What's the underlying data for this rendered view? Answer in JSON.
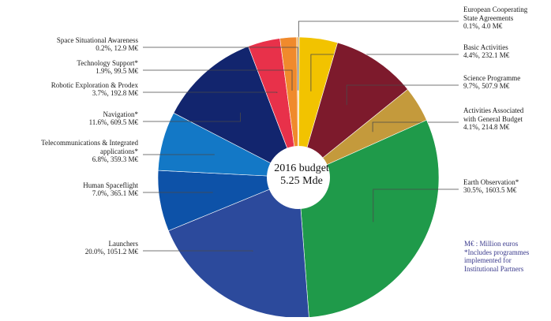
{
  "chart_data": {
    "type": "pie",
    "center_label": [
      "2016 budget",
      "5.25 Mde"
    ],
    "slices": [
      {
        "name": "European Cooperating State Agreements",
        "label_lines": [
          "European Cooperating",
          "State Agreements",
          "0.1%, 4.0 M€"
        ],
        "percent": 0.1,
        "value": 4.0,
        "color": "#d9d2b6"
      },
      {
        "name": "Basic Activities",
        "label_lines": [
          "Basic Activities",
          "4.4%, 232.1 M€"
        ],
        "percent": 4.4,
        "value": 232.1,
        "color": "#f2c300"
      },
      {
        "name": "Science Programme",
        "label_lines": [
          "Science Programme",
          "9.7%, 507.9 M€"
        ],
        "percent": 9.7,
        "value": 507.9,
        "color": "#7d1a2c"
      },
      {
        "name": "Activities Associated with General Budget",
        "label_lines": [
          "Activities Associated",
          "with General Budget",
          "4.1%, 214.8 M€"
        ],
        "percent": 4.1,
        "value": 214.8,
        "color": "#c49a3c"
      },
      {
        "name": "Earth Observation*",
        "label_lines": [
          "Earth Observation*",
          "30.5%, 1603.5 M€"
        ],
        "percent": 30.5,
        "value": 1603.5,
        "color": "#1f9a4a"
      },
      {
        "name": "Launchers",
        "label_lines": [
          "Launchers",
          "20.0%, 1051.2 M€"
        ],
        "percent": 20.0,
        "value": 1051.2,
        "color": "#2c4a9c"
      },
      {
        "name": "Human Spaceflight",
        "label_lines": [
          "Human Spaceflight",
          "7.0%, 365.1 M€"
        ],
        "percent": 7.0,
        "value": 365.1,
        "color": "#0d52a8"
      },
      {
        "name": "Telecommunications & Integrated applications*",
        "label_lines": [
          "Telecommunications & Integrated",
          "applications*",
          "6.8%, 359.3 M€"
        ],
        "percent": 6.8,
        "value": 359.3,
        "color": "#1378c6"
      },
      {
        "name": "Navigation*",
        "label_lines": [
          "Navigation*",
          "11.6%, 609.5 M€"
        ],
        "percent": 11.6,
        "value": 609.5,
        "color": "#12256e"
      },
      {
        "name": "Robotic Exploration & Prodex",
        "label_lines": [
          "Robotic Exploration & Prodex",
          "3.7%, 192.8 M€"
        ],
        "percent": 3.7,
        "value": 192.8,
        "color": "#e8314a"
      },
      {
        "name": "Technology Support*",
        "label_lines": [
          "Technology Support*",
          "1.9%, 99.5 M€"
        ],
        "percent": 1.9,
        "value": 99.5,
        "color": "#f08a2c"
      },
      {
        "name": "Space Situational Awareness",
        "label_lines": [
          "Space Situational Awareness",
          "0.2%, 12.9 M€"
        ],
        "percent": 0.2,
        "value": 12.9,
        "color": "#f4b860"
      }
    ],
    "footnote": [
      "M€ : Million euros",
      "*Includes programmes",
      "implemented for",
      "Institutional Partners"
    ]
  }
}
